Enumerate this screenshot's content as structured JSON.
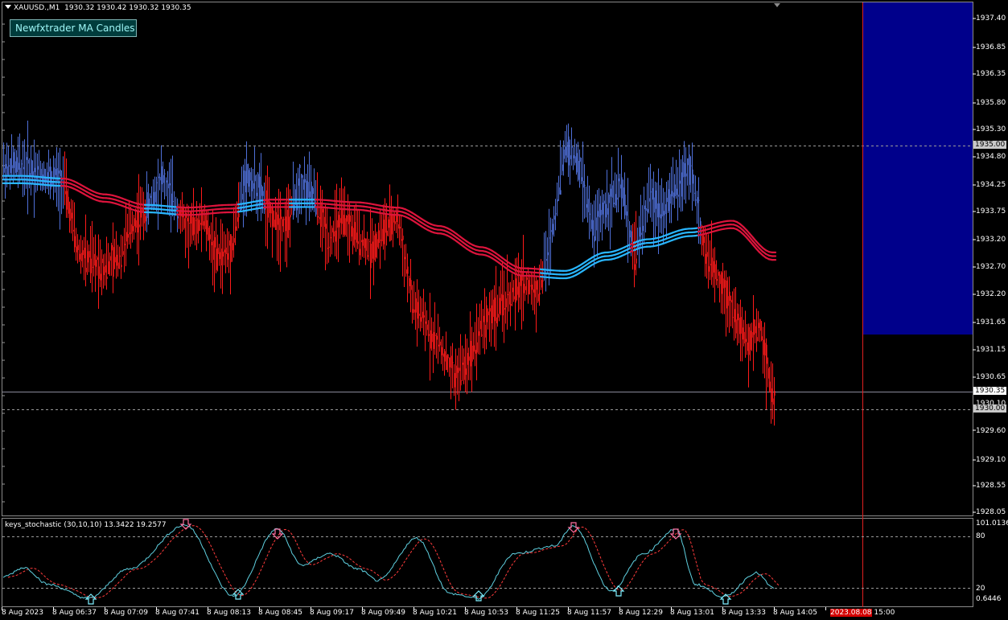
{
  "header": {
    "symbol": "XAUUSD.,M1",
    "quote": "1930.32 1930.42 1930.32 1930.35"
  },
  "ma_button": {
    "label": "Newfxtrader MA Candles"
  },
  "price_axis": {
    "labels": [
      "1937.40",
      "1936.85",
      "1936.35",
      "1935.80",
      "1935.30",
      "1934.80",
      "1934.25",
      "1933.75",
      "1933.20",
      "1932.70",
      "1932.20",
      "1931.65",
      "1931.15",
      "1930.65",
      "1930.10",
      "1929.60",
      "1929.10",
      "1928.55",
      "1928.05"
    ],
    "current_price": "1930.35",
    "level_upper": "1935.00",
    "level_lower": "1930.00"
  },
  "indicator": {
    "title": "keys_stochastic (30,10,10) 13.3422 19.2577",
    "axis_labels": [
      "101.0136",
      "80",
      "20",
      "0.6446"
    ]
  },
  "time_axis": {
    "labels": [
      "8 Aug 2023",
      "8 Aug 06:37",
      "8 Aug 07:09",
      "8 Aug 07:41",
      "8 Aug 08:13",
      "8 Aug 08:45",
      "8 Aug 09:17",
      "8 Aug 09:49",
      "8 Aug 10:21",
      "8 Aug 10:53",
      "8 Aug 11:25",
      "8 Aug 11:57",
      "8 Aug 12:29",
      "8 Aug 13:01",
      "8 Aug 13:33",
      "8 Aug 14:05"
    ],
    "current_time": "2023.08.08 15:00"
  },
  "colors": {
    "bull": "#4f70d9",
    "bear": "#ff1a1a",
    "ma_bull": "#29b6ff",
    "ma_bear": "#dc143c",
    "stoch_main": "#5fd0e0",
    "stoch_signal": "#ff3b3b",
    "blue_zone": "#00008b",
    "grid": "#808080"
  },
  "chart_data": {
    "type": "line",
    "series": [
      {
        "x": [
          "06:05",
          "06:14",
          "06:22",
          "06:31",
          "06:40",
          "06:48",
          "06:57",
          "07:06",
          "07:14",
          "07:23",
          "07:32",
          "07:40",
          "07:49",
          "07:58",
          "08:06",
          "08:15",
          "08:24",
          "08:32",
          "08:41",
          "08:50",
          "08:58",
          "09:07",
          "09:16",
          "09:24",
          "09:33",
          "09:42",
          "09:50",
          "09:59",
          "10:08",
          "10:16",
          "10:25",
          "10:34",
          "10:42",
          "10:51",
          "11:00",
          "11:08",
          "11:17",
          "11:26",
          "11:34",
          "11:43",
          "11:52",
          "12:00",
          "12:09",
          "12:18",
          "12:26",
          "12:35",
          "12:44",
          "12:52",
          "13:01",
          "13:10",
          "13:18",
          "13:27",
          "13:36",
          "13:44",
          "13:52"
        ],
        "values": [
          1934.6,
          1934.5,
          1934.4,
          1934.3,
          1933.0,
          1932.8,
          1932.7,
          1932.9,
          1933.5,
          1933.8,
          1934.4,
          1933.9,
          1933.4,
          1933.6,
          1932.9,
          1933.0,
          1934.4,
          1934.2,
          1933.6,
          1933.5,
          1934.3,
          1934.0,
          1933.2,
          1933.6,
          1933.3,
          1933.0,
          1933.4,
          1933.6,
          1932.0,
          1931.6,
          1931.2,
          1930.6,
          1930.9,
          1931.6,
          1931.9,
          1932.1,
          1932.4,
          1932.2,
          1933.2,
          1935.0,
          1934.6,
          1933.4,
          1933.9,
          1934.2,
          1932.9,
          1934.0,
          1933.8,
          1934.2,
          1934.6,
          1932.9,
          1932.5,
          1931.9,
          1931.2,
          1931.6,
          1930.2
        ]
      },
      {
        "x": [
          "06:05",
          "06:31",
          "06:57",
          "07:23",
          "07:49",
          "08:15",
          "08:41",
          "09:07",
          "09:33",
          "09:59",
          "10:25",
          "10:51",
          "11:17",
          "11:43",
          "12:09",
          "12:35",
          "13:01",
          "13:27",
          "13:52"
        ],
        "values": [
          1934.35,
          1934.3,
          1934.0,
          1933.8,
          1933.75,
          1933.8,
          1933.9,
          1933.9,
          1933.85,
          1933.75,
          1933.4,
          1933.0,
          1932.6,
          1932.55,
          1932.9,
          1933.15,
          1933.35,
          1933.5,
          1932.9
        ]
      }
    ],
    "ylim": [
      1928.05,
      1937.4
    ]
  }
}
